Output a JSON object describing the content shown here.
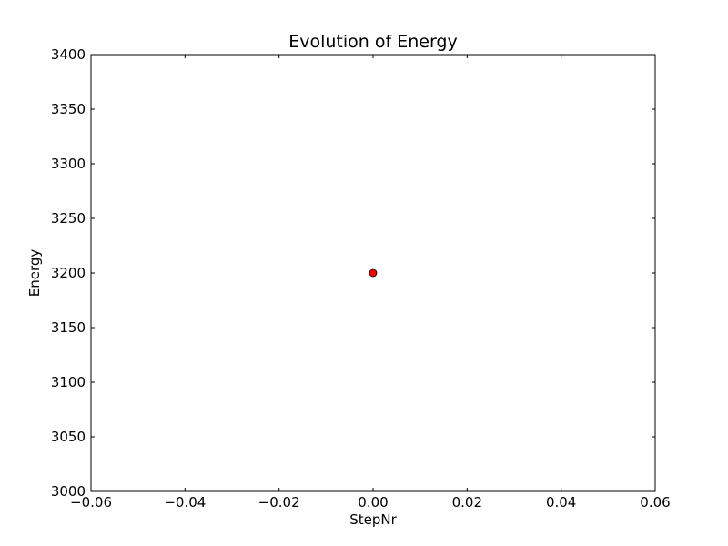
{
  "chart_data": {
    "type": "scatter",
    "title": "Evolution of Energy",
    "xlabel": "StepNr",
    "ylabel": "Energy",
    "xlim": [
      -0.06,
      0.06
    ],
    "ylim": [
      3000,
      3400
    ],
    "x_ticks": [
      -0.06,
      -0.04,
      -0.02,
      0.0,
      0.02,
      0.04,
      0.06
    ],
    "x_tick_labels": [
      "−0.06",
      "−0.04",
      "−0.02",
      "0.00",
      "0.02",
      "0.04",
      "0.06"
    ],
    "y_ticks": [
      3000,
      3050,
      3100,
      3150,
      3200,
      3250,
      3300,
      3350,
      3400
    ],
    "y_tick_labels": [
      "3000",
      "3050",
      "3100",
      "3150",
      "3200",
      "3250",
      "3300",
      "3350",
      "3400"
    ],
    "grid": false,
    "series": [
      {
        "name": "Energy",
        "x": [
          0.0
        ],
        "y": [
          3200
        ],
        "marker": "circle",
        "color": "#ff0000"
      }
    ]
  }
}
